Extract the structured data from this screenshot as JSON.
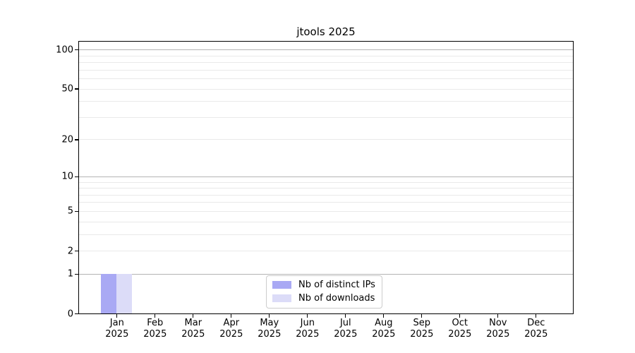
{
  "chart_data": {
    "type": "bar",
    "title": "jtools 2025",
    "categories": [
      "Jan",
      "Feb",
      "Mar",
      "Apr",
      "May",
      "Jun",
      "Jul",
      "Aug",
      "Sep",
      "Oct",
      "Nov",
      "Dec"
    ],
    "x_sublabel": "2025",
    "series": [
      {
        "name": "Nb of distinct IPs",
        "color": "#a9a9f4",
        "values": [
          1,
          0,
          0,
          0,
          0,
          0,
          0,
          0,
          0,
          0,
          0,
          0
        ]
      },
      {
        "name": "Nb of downloads",
        "color": "#dcdcf8",
        "values": [
          1,
          0,
          0,
          0,
          0,
          0,
          0,
          0,
          0,
          0,
          0,
          0
        ]
      }
    ],
    "yscale": "log1p",
    "ylim": [
      0,
      115
    ],
    "y_tick_labels": [
      0,
      1,
      2,
      5,
      10,
      20,
      50,
      100
    ],
    "y_decade_gridlines": [
      1,
      10,
      100
    ],
    "y_light_gridlines": [
      2,
      3,
      4,
      5,
      6,
      7,
      8,
      9,
      20,
      30,
      40,
      50,
      60,
      70,
      80,
      90
    ],
    "grid": true,
    "legend_position": "lower center",
    "colors": {
      "grid_decade": "#b4b4b4",
      "grid_light": "#e9e9e9",
      "spine": "#000000",
      "legend_border": "#cccccc",
      "text": "#000000",
      "background": "#ffffff"
    }
  }
}
